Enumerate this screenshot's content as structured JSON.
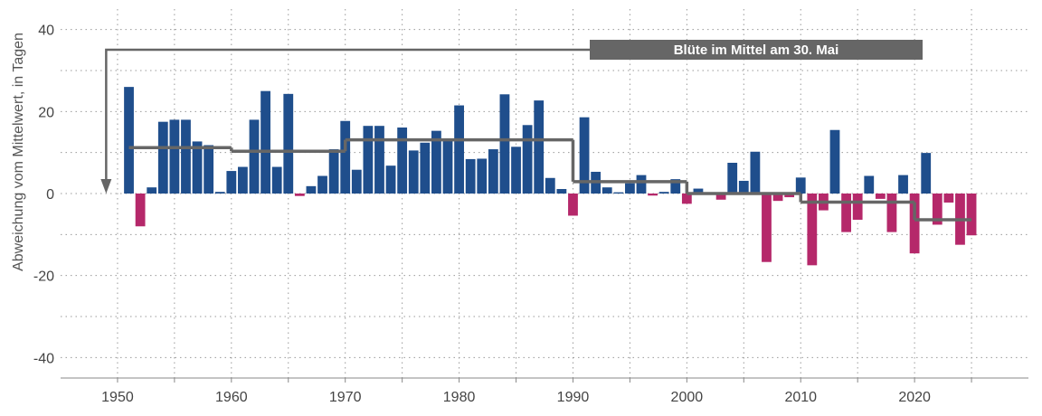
{
  "colors": {
    "positive": "#1f4e8c",
    "negative": "#b5286a",
    "mean_line": "#666666",
    "annotation_bg": "#666666",
    "grid": "#999999"
  },
  "chart_data": {
    "type": "bar",
    "title": "",
    "xlabel": "",
    "ylabel": "Abweichung vom Mittelwert, in Tagen",
    "ylim": [
      -45,
      45
    ],
    "xlim": [
      1945,
      2030
    ],
    "grid": true,
    "y_ticks": [
      40,
      20,
      0,
      -20,
      -40
    ],
    "y_tick_labels": [
      "40",
      "20",
      "0",
      "-20",
      "-40"
    ],
    "x_ticks": [
      1950,
      1960,
      1970,
      1980,
      1990,
      2000,
      2010,
      2020
    ],
    "x_tick_labels": [
      "1950",
      "1960",
      "1970",
      "1980",
      "1990",
      "2000",
      "2010",
      "2020"
    ],
    "bars": [
      {
        "year": 1951,
        "value": 26
      },
      {
        "year": 1952,
        "value": -8
      },
      {
        "year": 1953,
        "value": 1.5
      },
      {
        "year": 1954,
        "value": 17.5
      },
      {
        "year": 1955,
        "value": 18
      },
      {
        "year": 1956,
        "value": 18
      },
      {
        "year": 1957,
        "value": 12.7
      },
      {
        "year": 1958,
        "value": 11.8
      },
      {
        "year": 1959,
        "value": 0.4
      },
      {
        "year": 1960,
        "value": 5.5
      },
      {
        "year": 1961,
        "value": 6.5
      },
      {
        "year": 1962,
        "value": 18
      },
      {
        "year": 1963,
        "value": 25
      },
      {
        "year": 1964,
        "value": 6.5
      },
      {
        "year": 1965,
        "value": 24.3
      },
      {
        "year": 1966,
        "value": -0.6
      },
      {
        "year": 1967,
        "value": 1.8
      },
      {
        "year": 1968,
        "value": 4.3
      },
      {
        "year": 1969,
        "value": 10.8
      },
      {
        "year": 1970,
        "value": 17.7
      },
      {
        "year": 1971,
        "value": 5.8
      },
      {
        "year": 1972,
        "value": 16.5
      },
      {
        "year": 1973,
        "value": 16.5
      },
      {
        "year": 1974,
        "value": 6.8
      },
      {
        "year": 1975,
        "value": 16.1
      },
      {
        "year": 1976,
        "value": 10.5
      },
      {
        "year": 1977,
        "value": 12.4
      },
      {
        "year": 1978,
        "value": 15.3
      },
      {
        "year": 1979,
        "value": 13.1
      },
      {
        "year": 1980,
        "value": 21.5
      },
      {
        "year": 1981,
        "value": 8.4
      },
      {
        "year": 1982,
        "value": 8.5
      },
      {
        "year": 1983,
        "value": 10.8
      },
      {
        "year": 1984,
        "value": 24.2
      },
      {
        "year": 1985,
        "value": 11.4
      },
      {
        "year": 1986,
        "value": 16.7
      },
      {
        "year": 1987,
        "value": 22.7
      },
      {
        "year": 1988,
        "value": 3.8
      },
      {
        "year": 1989,
        "value": 1.1
      },
      {
        "year": 1990,
        "value": -5.4
      },
      {
        "year": 1991,
        "value": 18.6
      },
      {
        "year": 1992,
        "value": 5.3
      },
      {
        "year": 1993,
        "value": 1.5
      },
      {
        "year": 1994,
        "value": 0.3
      },
      {
        "year": 1995,
        "value": 2.5
      },
      {
        "year": 1996,
        "value": 4.5
      },
      {
        "year": 1997,
        "value": -0.5
      },
      {
        "year": 1998,
        "value": 0.4
      },
      {
        "year": 1999,
        "value": 3.5
      },
      {
        "year": 2000,
        "value": -2.5
      },
      {
        "year": 2001,
        "value": 1.2
      },
      {
        "year": 2002,
        "value": 0.2
      },
      {
        "year": 2003,
        "value": -1.5
      },
      {
        "year": 2004,
        "value": 7.5
      },
      {
        "year": 2005,
        "value": 3.1
      },
      {
        "year": 2006,
        "value": 10.2
      },
      {
        "year": 2007,
        "value": -16.7
      },
      {
        "year": 2008,
        "value": -1.8
      },
      {
        "year": 2009,
        "value": -0.9
      },
      {
        "year": 2010,
        "value": 3.9
      },
      {
        "year": 2011,
        "value": -17.5
      },
      {
        "year": 2012,
        "value": -4.1
      },
      {
        "year": 2013,
        "value": 15.5
      },
      {
        "year": 2014,
        "value": -9.4
      },
      {
        "year": 2015,
        "value": -6.4
      },
      {
        "year": 2016,
        "value": 4.3
      },
      {
        "year": 2017,
        "value": -1.3
      },
      {
        "year": 2018,
        "value": -9.4
      },
      {
        "year": 2019,
        "value": 4.5
      },
      {
        "year": 2020,
        "value": -14.6
      },
      {
        "year": 2021,
        "value": 9.9
      },
      {
        "year": 2022,
        "value": -7.6
      },
      {
        "year": 2023,
        "value": -2.2
      },
      {
        "year": 2024,
        "value": -12.5
      },
      {
        "year": 2025,
        "value": -10.2
      }
    ],
    "decade_means": [
      {
        "x_start": 1951,
        "x_end": 1960,
        "value": 11.2
      },
      {
        "x_start": 1960,
        "x_end": 1970,
        "value": 10.3
      },
      {
        "x_start": 1970,
        "x_end": 1980,
        "value": 13.1
      },
      {
        "x_start": 1980,
        "x_end": 1990,
        "value": 13.1
      },
      {
        "x_start": 1990,
        "x_end": 2000,
        "value": 2.9
      },
      {
        "x_start": 2000,
        "x_end": 2010,
        "value": 0
      },
      {
        "x_start": 2010,
        "x_end": 2020,
        "value": -2.1
      },
      {
        "x_start": 2020,
        "x_end": 2025,
        "value": -6.4
      }
    ],
    "annotation": {
      "text": "Blüte im Mittel am 30. Mai",
      "arrow_target_x": 1949,
      "arrow_target_y": 0
    }
  }
}
